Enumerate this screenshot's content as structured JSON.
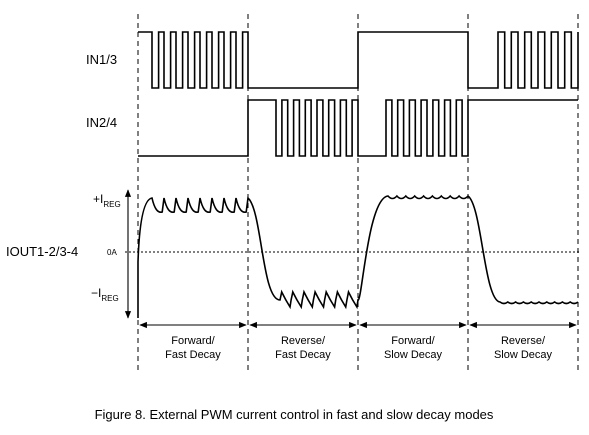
{
  "signals": {
    "in13": "IN1/3",
    "in24": "IN2/4",
    "iout": "IOUT1-2/3-4"
  },
  "levels": {
    "ireg_pos_prefix": "+I",
    "ireg_neg_prefix": "−I",
    "ireg_sub": "REG",
    "zero": "0A"
  },
  "modes": [
    {
      "line1": "Forward/",
      "line2": "Fast Decay"
    },
    {
      "line1": "Reverse/",
      "line2": "Fast Decay"
    },
    {
      "line1": "Forward/",
      "line2": "Slow Decay"
    },
    {
      "line1": "Reverse/",
      "line2": "Slow Decay"
    }
  ],
  "caption": "Figure 8. External PWM current control in fast and slow decay modes"
}
